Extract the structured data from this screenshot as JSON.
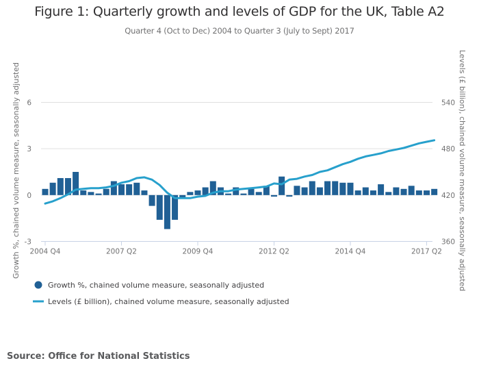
{
  "title": "Figure 1: Quarterly growth and levels of GDP for the UK, Table A2",
  "subtitle": "Quarter 4 (Oct to Dec) 2004 to Quarter 3 (July to Sept) 2017",
  "source": "Source: Office for National Statistics",
  "colors": {
    "bars": "#206095",
    "line": "#27a0cc",
    "grid": "#e0e0e0",
    "axis_text": "#707071"
  },
  "chart_data": {
    "type": "bar+line",
    "title": "Figure 1: Quarterly growth and levels of GDP for the UK, Table A2",
    "subtitle": "Quarter 4 (Oct to Dec) 2004 to Quarter 3 (July to Sept) 2017",
    "ylabel_left": "Growth %, chained volume measure, seasonally adjusted",
    "ylabel_right": "Levels (£ billion), chained volume measure, seasonally adjusted",
    "ylim_left": [
      -3,
      6
    ],
    "ylim_right": [
      360,
      540
    ],
    "yticks_left": [
      -3,
      0,
      3,
      6
    ],
    "yticks_right": [
      360,
      420,
      480,
      540
    ],
    "xticks": [
      "2004 Q4",
      "2007 Q2",
      "2009 Q4",
      "2012 Q2",
      "2014 Q4",
      "2017 Q2"
    ],
    "xtick_indices": [
      0,
      10,
      20,
      30,
      40,
      50
    ],
    "grid": true,
    "legend_position": "bottom-left",
    "categories": [
      "2004 Q4",
      "2005 Q1",
      "2005 Q2",
      "2005 Q3",
      "2005 Q4",
      "2006 Q1",
      "2006 Q2",
      "2006 Q3",
      "2006 Q4",
      "2007 Q1",
      "2007 Q2",
      "2007 Q3",
      "2007 Q4",
      "2008 Q1",
      "2008 Q2",
      "2008 Q3",
      "2008 Q4",
      "2009 Q1",
      "2009 Q2",
      "2009 Q3",
      "2009 Q4",
      "2010 Q1",
      "2010 Q2",
      "2010 Q3",
      "2010 Q4",
      "2011 Q1",
      "2011 Q2",
      "2011 Q3",
      "2011 Q4",
      "2012 Q1",
      "2012 Q2",
      "2012 Q3",
      "2012 Q4",
      "2013 Q1",
      "2013 Q2",
      "2013 Q3",
      "2013 Q4",
      "2014 Q1",
      "2014 Q2",
      "2014 Q3",
      "2014 Q4",
      "2015 Q1",
      "2015 Q2",
      "2015 Q3",
      "2015 Q4",
      "2016 Q1",
      "2016 Q2",
      "2016 Q3",
      "2016 Q4",
      "2017 Q1",
      "2017 Q2",
      "2017 Q3"
    ],
    "series": [
      {
        "name": "Growth %, chained volume measure, seasonally adjusted",
        "type": "bar",
        "axis": "left",
        "values": [
          0.4,
          0.8,
          1.1,
          1.1,
          1.5,
          0.3,
          0.2,
          0.1,
          0.4,
          0.9,
          0.7,
          0.7,
          0.8,
          0.3,
          -0.7,
          -1.6,
          -2.2,
          -1.6,
          -0.2,
          0.2,
          0.3,
          0.5,
          0.9,
          0.5,
          0.1,
          0.5,
          0.1,
          0.4,
          0.2,
          0.6,
          -0.1,
          1.2,
          -0.1,
          0.6,
          0.5,
          0.9,
          0.5,
          0.9,
          0.9,
          0.8,
          0.8,
          0.3,
          0.5,
          0.3,
          0.7,
          0.2,
          0.5,
          0.4,
          0.6,
          0.3,
          0.3,
          0.4
        ]
      },
      {
        "name": "Levels (£ billion), chained volume measure, seasonally adjusted",
        "type": "line",
        "axis": "right",
        "values": [
          409,
          412,
          416,
          421,
          427,
          428,
          429,
          429,
          430,
          432,
          436,
          438,
          442,
          443,
          440,
          433,
          423,
          416,
          416,
          416,
          418,
          419,
          423,
          425,
          425,
          427,
          428,
          429,
          430,
          431,
          435,
          434,
          440,
          441,
          444,
          446,
          450,
          452,
          456,
          460,
          463,
          467,
          470,
          472,
          474,
          477,
          479,
          481,
          484,
          487,
          489,
          491
        ]
      }
    ]
  }
}
